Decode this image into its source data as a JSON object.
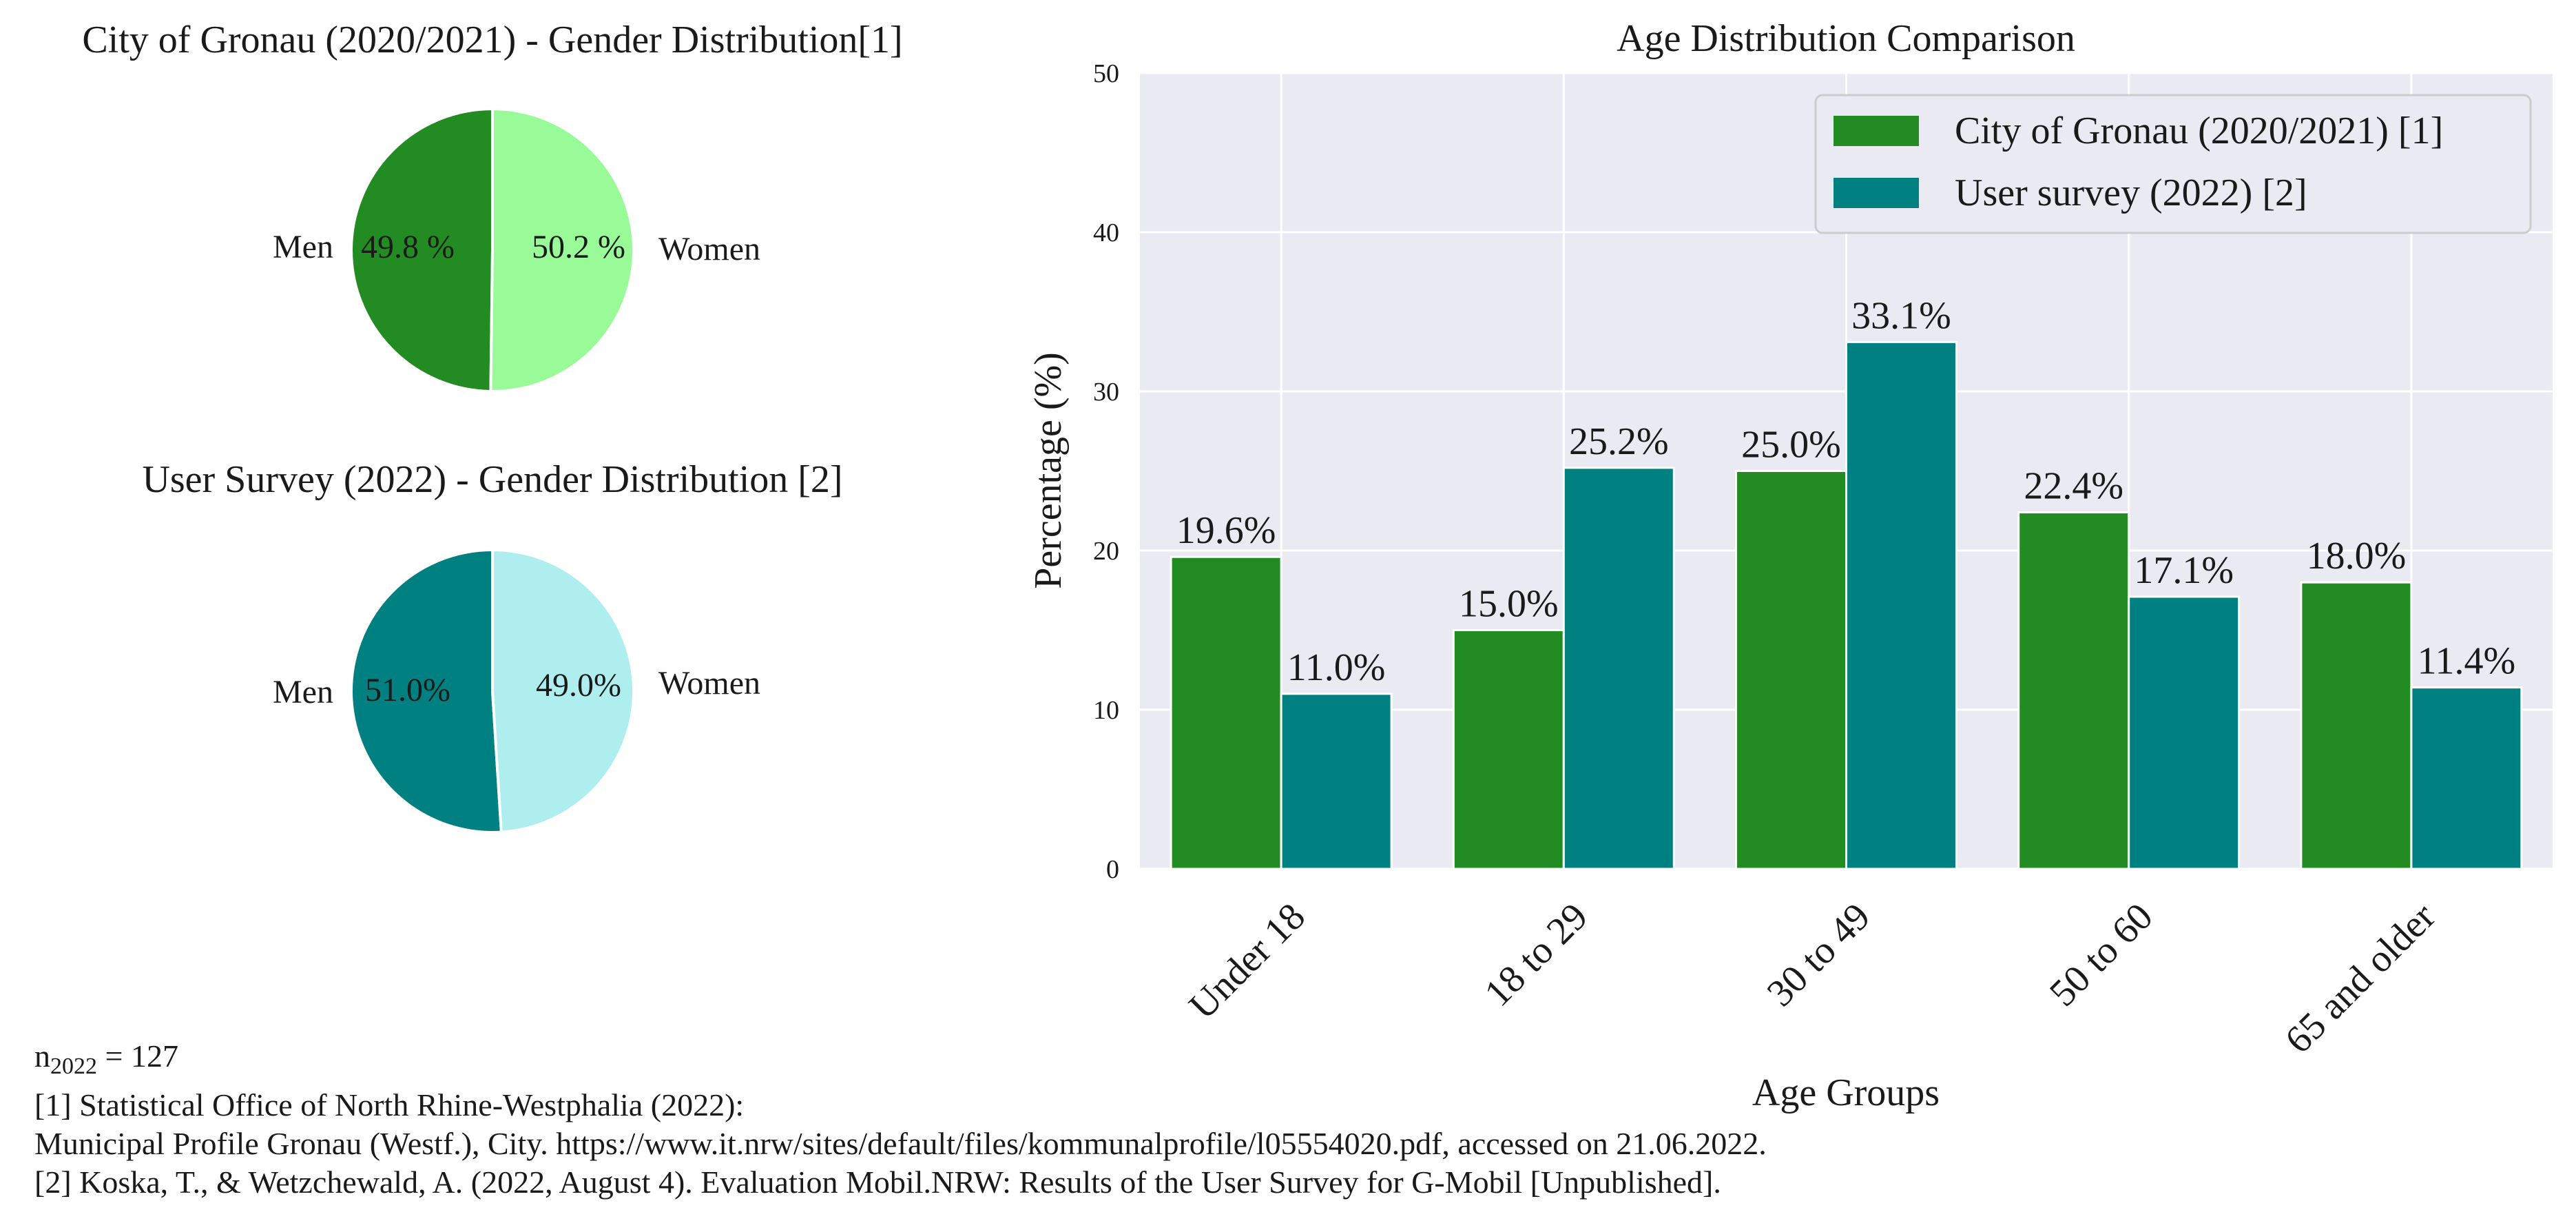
{
  "chart_data": [
    {
      "type": "pie",
      "title": "City of Gronau (2020/2021) - Gender Distribution[1]",
      "slices": [
        {
          "label": "Men",
          "value": 49.8,
          "pct_label": "49.8 %",
          "color": "#228B22"
        },
        {
          "label": "Women",
          "value": 50.2,
          "pct_label": "50.2 %",
          "color": "#98FB98"
        }
      ]
    },
    {
      "type": "pie",
      "title": "User Survey (2022) - Gender Distribution [2]",
      "slices": [
        {
          "label": "Men",
          "value": 51.0,
          "pct_label": "51.0%",
          "color": "#008080"
        },
        {
          "label": "Women",
          "value": 49.0,
          "pct_label": "49.0%",
          "color": "#AFEEEE"
        }
      ]
    },
    {
      "type": "bar",
      "title": "Age Distribution Comparison",
      "xlabel": "Age Groups",
      "ylabel": "Percentage (%)",
      "ylim": [
        0,
        50
      ],
      "yticks": [
        0,
        10,
        20,
        30,
        40,
        50
      ],
      "grid": true,
      "legend": "top-right",
      "categories": [
        "Under 18",
        "18 to 29",
        "30 to 49",
        "50 to 60",
        "65 and older"
      ],
      "series": [
        {
          "name": "City of Gronau (2020/2021) [1]",
          "color": "#228B22",
          "values": [
            19.6,
            15.0,
            25.0,
            22.4,
            18.0
          ],
          "labels": [
            "19.6%",
            "15.0%",
            "25.0%",
            "22.4%",
            "18.0%"
          ]
        },
        {
          "name": "User survey (2022) [2]",
          "color": "#008080",
          "values": [
            11.0,
            25.2,
            33.1,
            17.1,
            11.4
          ],
          "labels": [
            "11.0%",
            "25.2%",
            "33.1%",
            "17.1%",
            "11.4%"
          ]
        }
      ]
    }
  ],
  "footnotes": {
    "n_prefix": "n",
    "n_sub": "2022",
    "n_suffix": " = 127",
    "ref1_line1": "[1] Statistical Office of North Rhine-Westphalia (2022):",
    "ref1_line2": "Municipal Profile Gronau (Westf.), City. https://www.it.nrw/sites/default/files/kommunalprofile/l05554020.pdf, accessed on 21.06.2022.",
    "ref2": "[2] Koska, T., & Wetzchewald, A. (2022, August 4). Evaluation Mobil.NRW: Results of the User Survey for G-Mobil [Unpublished]."
  }
}
